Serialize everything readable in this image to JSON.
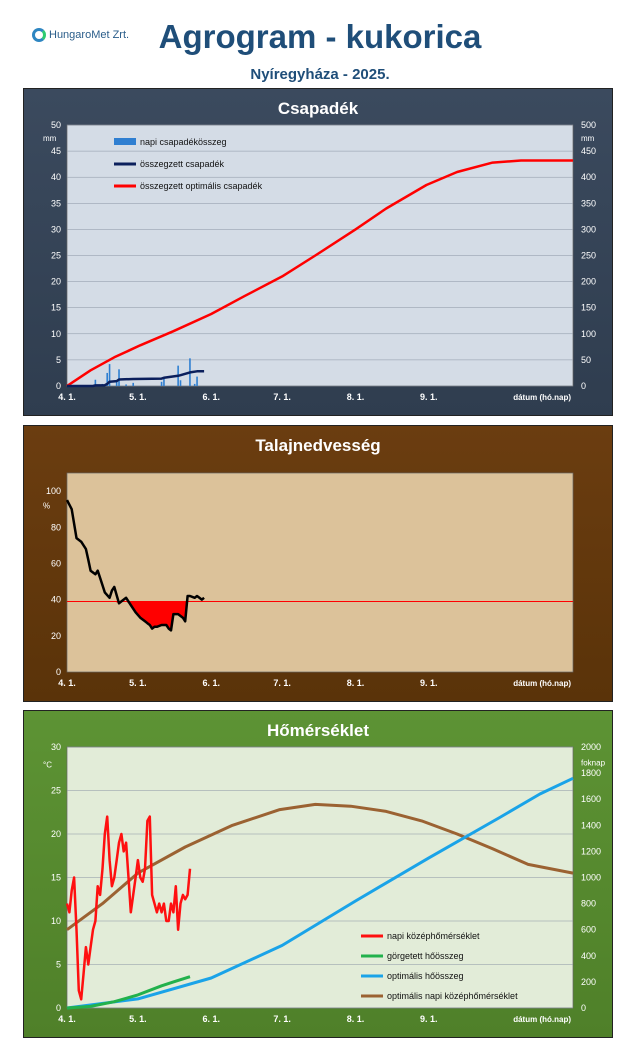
{
  "header": {
    "logo_text": "HungaroMet Zrt.",
    "title": "Agrogram - kukorica",
    "subtitle": "Nyíregyháza  - 2025."
  },
  "x_axis": {
    "ticks": [
      "4. 1.",
      "5. 1.",
      "6. 1.",
      "7. 1.",
      "8. 1.",
      "9. 1."
    ],
    "label": "dátum (hó.nap)",
    "range_days": [
      0,
      214
    ]
  },
  "chart_data": [
    {
      "type": "bar",
      "title": "Csapadék",
      "colors": {
        "panel": "#34435a",
        "plot": "#d4dce6",
        "daily": "#2f7fd1",
        "cum": "#0b1f5c",
        "optimal": "#ff0000"
      },
      "y_left": {
        "unit": "mm",
        "range": [
          0,
          50
        ],
        "ticks": [
          "0",
          "5",
          "10",
          "15",
          "20",
          "25",
          "30",
          "35",
          "40",
          "45",
          "50"
        ]
      },
      "y_right": {
        "unit": "mm",
        "range": [
          0,
          500
        ],
        "ticks": [
          "0",
          "50",
          "100",
          "150",
          "200",
          "250",
          "300",
          "350",
          "400",
          "450",
          "500"
        ]
      },
      "legend": [
        "napi csapadékösszeg",
        "összegzett csapadék",
        "összegzett optimális csapadék"
      ],
      "daily_rain": [
        [
          12,
          1.2
        ],
        [
          15,
          0.4
        ],
        [
          17,
          2.5
        ],
        [
          18,
          4.2
        ],
        [
          21,
          1.0
        ],
        [
          22,
          3.2
        ],
        [
          25,
          0.3
        ],
        [
          28,
          0.6
        ],
        [
          40,
          0.8
        ],
        [
          41,
          1.5
        ],
        [
          47,
          3.9
        ],
        [
          48,
          1.1
        ],
        [
          52,
          5.3
        ],
        [
          54,
          0.4
        ],
        [
          55,
          1.8
        ]
      ],
      "cumulative_rain_mm": [
        [
          0,
          0
        ],
        [
          11,
          0
        ],
        [
          12,
          1.2
        ],
        [
          16,
          1.6
        ],
        [
          17,
          4.1
        ],
        [
          18,
          8.3
        ],
        [
          21,
          9.3
        ],
        [
          22,
          12.5
        ],
        [
          28,
          13.4
        ],
        [
          40,
          14.2
        ],
        [
          41,
          15.7
        ],
        [
          47,
          19.6
        ],
        [
          48,
          20.7
        ],
        [
          52,
          26.0
        ],
        [
          55,
          28.2
        ],
        [
          58,
          28.2
        ]
      ],
      "optimal_cum_mm": [
        [
          0,
          0
        ],
        [
          10,
          30
        ],
        [
          20,
          55
        ],
        [
          31,
          78
        ],
        [
          45,
          105
        ],
        [
          61,
          138
        ],
        [
          75,
          172
        ],
        [
          91,
          210
        ],
        [
          105,
          250
        ],
        [
          122,
          300
        ],
        [
          135,
          340
        ],
        [
          152,
          385
        ],
        [
          165,
          410
        ],
        [
          180,
          428
        ],
        [
          192,
          432
        ],
        [
          214,
          432
        ]
      ]
    },
    {
      "type": "line",
      "title": "Talajnedvesség",
      "colors": {
        "panel": "#643a10",
        "plot": "#dcc29a",
        "line": "#000000",
        "threshold": "#ff0000",
        "deficit": "#ff0000"
      },
      "y": {
        "unit": "%",
        "range": [
          0,
          110
        ],
        "ticks": [
          "0",
          "20",
          "40",
          "60",
          "80",
          "100"
        ]
      },
      "threshold": 39,
      "soil_moisture": [
        [
          0,
          95
        ],
        [
          2,
          90
        ],
        [
          4,
          74
        ],
        [
          6,
          72
        ],
        [
          8,
          68
        ],
        [
          9,
          62
        ],
        [
          10,
          56
        ],
        [
          12,
          54
        ],
        [
          13,
          56
        ],
        [
          14,
          52
        ],
        [
          16,
          44
        ],
        [
          18,
          41
        ],
        [
          19,
          45
        ],
        [
          20,
          47
        ],
        [
          22,
          38
        ],
        [
          23,
          39
        ],
        [
          25,
          41
        ],
        [
          27,
          37
        ],
        [
          29,
          33
        ],
        [
          31,
          30
        ],
        [
          33,
          28
        ],
        [
          34,
          27
        ],
        [
          35,
          26
        ],
        [
          36,
          24
        ],
        [
          37,
          25
        ],
        [
          38,
          25
        ],
        [
          40,
          26
        ],
        [
          42,
          26
        ],
        [
          43,
          24
        ],
        [
          44,
          23
        ],
        [
          45,
          32
        ],
        [
          47,
          32
        ],
        [
          49,
          30
        ],
        [
          50,
          28
        ],
        [
          51,
          42
        ],
        [
          52,
          42
        ],
        [
          54,
          41
        ],
        [
          55,
          42
        ],
        [
          56,
          41
        ],
        [
          57,
          40
        ],
        [
          58,
          41
        ]
      ]
    },
    {
      "type": "line",
      "title": "Hőmérséklet",
      "colors": {
        "panel": "#588c30",
        "plot": "#e2ecd8",
        "daily": "#ff1010",
        "gdd": "#22b14c",
        "optimal_gdd": "#1aa3e8",
        "optimal_temp": "#9b6232"
      },
      "y_left": {
        "unit": "°C",
        "range": [
          0,
          30
        ],
        "ticks": [
          "0",
          "5",
          "10",
          "15",
          "20",
          "25",
          "30"
        ]
      },
      "y_right": {
        "unit": "foknap",
        "range": [
          0,
          2000
        ],
        "ticks": [
          "0",
          "200",
          "400",
          "600",
          "800",
          "1000",
          "1200",
          "1400",
          "1600",
          "1800",
          "2000"
        ]
      },
      "legend": [
        "napi középhőmérséklet",
        "görgetett hőösszeg",
        "optimális hőösszeg",
        "optimális napi középhőmérséklet"
      ],
      "daily_mean_temp_c": [
        [
          0,
          12
        ],
        [
          1,
          11
        ],
        [
          2,
          13.5
        ],
        [
          3,
          15
        ],
        [
          4,
          9
        ],
        [
          5,
          2
        ],
        [
          6,
          1
        ],
        [
          7,
          4
        ],
        [
          8,
          7
        ],
        [
          9,
          5
        ],
        [
          10,
          7
        ],
        [
          11,
          9
        ],
        [
          12,
          10
        ],
        [
          13,
          14
        ],
        [
          14,
          13
        ],
        [
          15,
          16
        ],
        [
          16,
          20
        ],
        [
          17,
          22
        ],
        [
          18,
          17
        ],
        [
          19,
          14
        ],
        [
          20,
          15
        ],
        [
          21,
          17
        ],
        [
          22,
          19
        ],
        [
          23,
          20
        ],
        [
          24,
          18
        ],
        [
          25,
          19
        ],
        [
          26,
          15
        ],
        [
          27,
          11
        ],
        [
          28,
          13
        ],
        [
          29,
          15
        ],
        [
          30,
          17
        ],
        [
          31,
          15
        ],
        [
          32,
          14.5
        ],
        [
          33,
          16
        ],
        [
          34,
          21.5
        ],
        [
          35,
          22
        ],
        [
          36,
          13
        ],
        [
          37,
          12
        ],
        [
          38,
          11
        ],
        [
          39,
          12
        ],
        [
          40,
          11
        ],
        [
          41,
          12
        ],
        [
          42,
          10
        ],
        [
          43,
          10
        ],
        [
          44,
          12
        ],
        [
          45,
          11
        ],
        [
          46,
          14
        ],
        [
          47,
          9
        ],
        [
          48,
          12
        ],
        [
          49,
          13
        ],
        [
          50,
          12.5
        ],
        [
          51,
          13
        ],
        [
          52,
          16
        ]
      ],
      "gdd_cumulative": [
        [
          0,
          0
        ],
        [
          10,
          12
        ],
        [
          20,
          48
        ],
        [
          30,
          100
        ],
        [
          40,
          170
        ],
        [
          45,
          200
        ],
        [
          52,
          240
        ]
      ],
      "optimal_gdd": [
        [
          0,
          0
        ],
        [
          30,
          70
        ],
        [
          61,
          230
        ],
        [
          91,
          480
        ],
        [
          122,
          820
        ],
        [
          153,
          1150
        ],
        [
          183,
          1460
        ],
        [
          200,
          1640
        ],
        [
          214,
          1760
        ]
      ],
      "optimal_daily_temp_c": [
        [
          0,
          9
        ],
        [
          15,
          12
        ],
        [
          30,
          15.5
        ],
        [
          50,
          18.5
        ],
        [
          70,
          21
        ],
        [
          90,
          22.8
        ],
        [
          105,
          23.4
        ],
        [
          120,
          23.2
        ],
        [
          135,
          22.6
        ],
        [
          150,
          21.5
        ],
        [
          165,
          20
        ],
        [
          180,
          18.3
        ],
        [
          195,
          16.5
        ],
        [
          214,
          15.5
        ]
      ]
    }
  ]
}
